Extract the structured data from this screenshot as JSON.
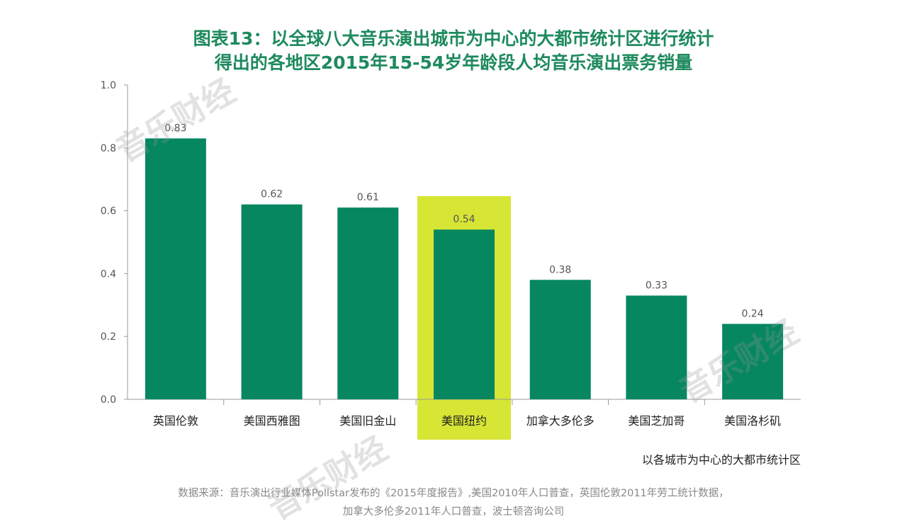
{
  "chart_data": {
    "type": "bar",
    "title_line1": "图表13：以全球八大音乐演出城市为中心的大都市统计区进行统计",
    "title_line2": "得出的各地区2015年15-54岁年龄段人均音乐演出票务销量",
    "categories": [
      "英国伦敦",
      "美国西雅图",
      "美国旧金山",
      "美国纽约",
      "加拿大多伦多",
      "美国芝加哥",
      "美国洛杉矶"
    ],
    "values": [
      0.83,
      0.62,
      0.61,
      0.54,
      0.38,
      0.33,
      0.24
    ],
    "value_labels": [
      "0.83",
      "0.62",
      "0.61",
      "0.54",
      "0.38",
      "0.33",
      "0.24"
    ],
    "highlight_index": 3,
    "ylim": [
      0,
      1.0
    ],
    "yticks": [
      0.0,
      0.2,
      0.4,
      0.6,
      0.8,
      1.0
    ],
    "ytick_labels": [
      "0.0",
      "0.2",
      "0.4",
      "0.6",
      "0.8",
      "1.0"
    ],
    "xlabel": "以各城市为中心的大都市统计区",
    "grid": false,
    "colors": {
      "bar": "#06875f",
      "highlight": "#d7e535",
      "title": "#1e8a5d"
    }
  },
  "source_line1": "数据来源：音乐演出行业媒体Pollstar发布的《2015年度报告》,美国2010年人口普查，英国伦敦2011年劳工统计数据，",
  "source_line2": "加拿大多伦多2011年人口普查，波士顿咨询公司",
  "watermark": "音乐财经"
}
